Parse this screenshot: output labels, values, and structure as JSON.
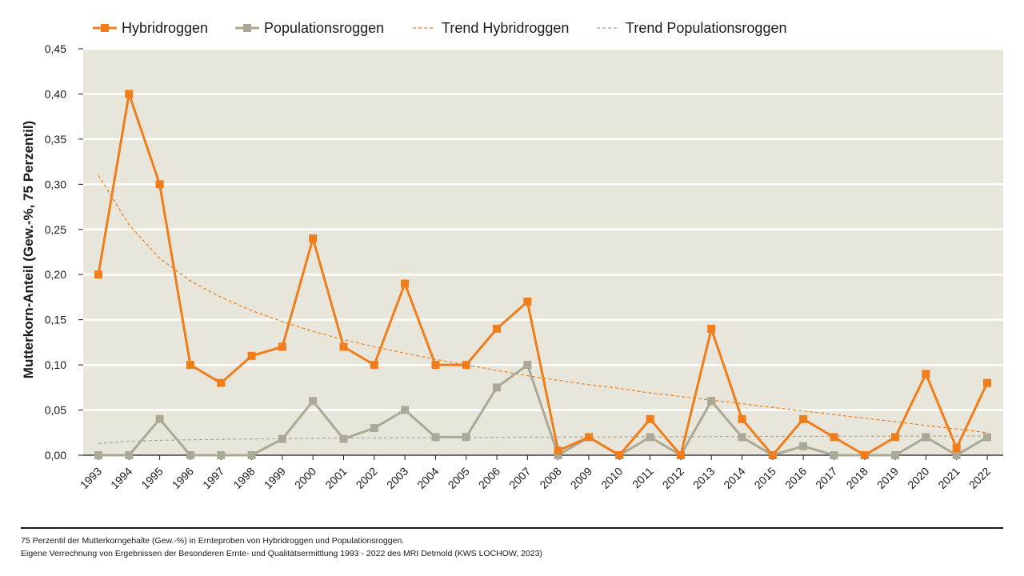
{
  "chart_data": {
    "type": "line",
    "ylabel": "Mutterkorn-Anteil (Gew.-%, 75 Perzentil)",
    "ylim": [
      0,
      0.45
    ],
    "yticks": [
      "0,00",
      "0,05",
      "0,10",
      "0,15",
      "0,20",
      "0,25",
      "0,30",
      "0,35",
      "0,40",
      "0,45"
    ],
    "grid": true,
    "legend_position": "top",
    "categories": [
      "1993",
      "1994",
      "1995",
      "1996",
      "1997",
      "1998",
      "1999",
      "2000",
      "2001",
      "2002",
      "2003",
      "2004",
      "2005",
      "2006",
      "2007",
      "2008",
      "2009",
      "2010",
      "2011",
      "2012",
      "2013",
      "2014",
      "2015",
      "2016",
      "2017",
      "2018",
      "2019",
      "2020",
      "2021",
      "2022"
    ],
    "series": [
      {
        "name": "Hybridroggen",
        "color": "#f07d1a",
        "marker": "square",
        "values": [
          0.2,
          0.4,
          0.3,
          0.1,
          0.08,
          0.11,
          0.12,
          0.24,
          0.12,
          0.1,
          0.19,
          0.1,
          0.1,
          0.14,
          0.17,
          0.005,
          0.02,
          0.0,
          0.04,
          0.0,
          0.14,
          0.04,
          0.0,
          0.04,
          0.02,
          0.0,
          0.02,
          0.09,
          0.008,
          0.08
        ]
      },
      {
        "name": "Populationsroggen",
        "color": "#aba896",
        "marker": "square",
        "values": [
          0.0,
          0.0,
          0.04,
          0.0,
          0.0,
          0.0,
          0.018,
          0.06,
          0.018,
          0.03,
          0.05,
          0.02,
          0.02,
          0.075,
          0.1,
          0.0,
          0.02,
          0.0,
          0.02,
          0.0,
          0.06,
          0.02,
          0.0,
          0.01,
          0.0,
          0.0,
          0.0,
          0.02,
          0.0,
          0.02
        ]
      }
    ],
    "trends": [
      {
        "name": "Trend Hybridroggen",
        "color": "#f07d1a",
        "style": "dashed",
        "values": [
          0.31,
          0.255,
          0.218,
          0.193,
          0.175,
          0.16,
          0.148,
          0.137,
          0.128,
          0.12,
          0.113,
          0.106,
          0.1,
          0.094,
          0.088,
          0.083,
          0.078,
          0.074,
          0.069,
          0.065,
          0.061,
          0.057,
          0.053,
          0.049,
          0.045,
          0.041,
          0.037,
          0.033,
          0.029,
          0.025
        ]
      },
      {
        "name": "Trend Populationsroggen",
        "color": "#aba896",
        "style": "dashed",
        "values": [
          0.013,
          0.0155,
          0.0165,
          0.017,
          0.0175,
          0.018,
          0.0183,
          0.0186,
          0.0189,
          0.0191,
          0.0193,
          0.0195,
          0.0197,
          0.0198,
          0.02,
          0.0201,
          0.0202,
          0.0203,
          0.0204,
          0.0205,
          0.0206,
          0.0207,
          0.0208,
          0.0209,
          0.021,
          0.021,
          0.0211,
          0.0212,
          0.0212,
          0.0213
        ]
      }
    ],
    "colors": {
      "plot_background": "#e8e6da",
      "grid": "#ffffff"
    }
  },
  "footer": {
    "line1": "75 Perzentil der Mutterkorngehalte (Gew.-%) in Ernteproben von Hybridroggen und Populationsroggen.",
    "line2": "Eigene Verrechnung von Ergebnissen der Besonderen Ernte- und Qualitätsermittlung 1993 - 2022 des MRI Detmold (KWS LOCHOW, 2023)"
  }
}
